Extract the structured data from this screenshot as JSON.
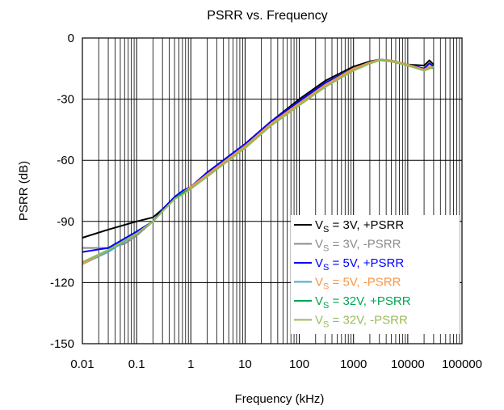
{
  "chart_data": {
    "type": "line",
    "title": "PSRR vs. Frequency",
    "xlabel": "Frequency (kHz)",
    "ylabel": "PSRR (dB)",
    "x_scale": "log",
    "xlim": [
      0.01,
      100000
    ],
    "ylim": [
      -150,
      0
    ],
    "x_ticks": [
      "0.01",
      "0.1",
      "1",
      "10",
      "100",
      "1000",
      "10000",
      "100000"
    ],
    "y_ticks": [
      "0",
      "-30",
      "-60",
      "-90",
      "-120",
      "-150"
    ],
    "grid": "on (major and minor, log x)",
    "legend_position": "bottom-right",
    "series": [
      {
        "name": "VS = 3V, +PSRR",
        "legend_main": "V",
        "legend_sub": "S",
        "legend_rest": " = 3V, +PSRR",
        "color": "#000000",
        "x": [
          0.01,
          0.03,
          0.1,
          0.2,
          0.3,
          0.5,
          0.7,
          1,
          2,
          5,
          10,
          30,
          100,
          300,
          1000,
          2000,
          3000,
          5000,
          10000,
          20000,
          25000,
          30000
        ],
        "y": [
          -98,
          -94,
          -90,
          -88,
          -84,
          -79,
          -76,
          -73,
          -66,
          -58,
          -52,
          -41,
          -30,
          -21,
          -14,
          -11.5,
          -10.5,
          -11,
          -13,
          -13.5,
          -11,
          -13
        ]
      },
      {
        "name": "VS = 3V, -PSRR",
        "legend_main": "V",
        "legend_sub": "S",
        "legend_rest": " = 3V, -PSRR",
        "color": "#8c8c8c",
        "x": [
          0.01,
          0.03,
          0.06,
          0.1,
          0.2,
          0.3,
          0.5,
          0.7,
          1,
          2,
          5,
          10,
          30,
          100,
          300,
          1000,
          2000,
          3000,
          5000,
          10000,
          20000,
          25000,
          30000
        ],
        "y": [
          -103,
          -103,
          -101,
          -97,
          -90,
          -85,
          -79,
          -76,
          -73,
          -66,
          -58,
          -52,
          -41,
          -31,
          -22,
          -15,
          -12,
          -10.5,
          -11,
          -13,
          -15,
          -12,
          -14
        ]
      },
      {
        "name": "VS = 5V, +PSRR",
        "legend_main": "V",
        "legend_sub": "S",
        "legend_rest": " = 5V, +PSRR",
        "color": "#0000ff",
        "x": [
          0.01,
          0.03,
          0.1,
          0.2,
          0.3,
          0.5,
          0.7,
          1,
          2,
          5,
          10,
          30,
          100,
          300,
          1000,
          2000,
          3000,
          5000,
          10000,
          20000,
          25000,
          30000
        ],
        "y": [
          -105,
          -103,
          -95,
          -90,
          -84,
          -78,
          -75,
          -73,
          -66,
          -58,
          -52,
          -41,
          -31,
          -22,
          -15,
          -12,
          -10.5,
          -11,
          -13,
          -15,
          -12.5,
          -14
        ]
      },
      {
        "name": "VS = 5V, -PSRR",
        "legend_main": "V",
        "legend_sub": "S",
        "legend_rest": " = 5V, -PSRR",
        "color": "#4bacc6",
        "x": [
          0.01,
          0.03,
          0.1,
          0.2,
          0.3,
          0.5,
          0.7,
          1,
          2,
          5,
          10,
          30,
          100,
          300,
          1000,
          2000,
          3000,
          5000,
          10000,
          20000,
          25000,
          30000
        ],
        "y": [
          -111,
          -105,
          -96,
          -90,
          -85,
          -79,
          -76,
          -73,
          -67,
          -59,
          -53,
          -42,
          -32,
          -23,
          -15,
          -12,
          -10.5,
          -11,
          -13,
          -15.5,
          -14,
          -15
        ]
      },
      {
        "name": "VS = 5V, -PSRR (orange)",
        "legend_main": "V",
        "legend_sub": "S",
        "legend_rest": " = 5V, -PSRR",
        "color": "#f79646",
        "x": [
          0.01,
          0.03,
          0.1,
          0.2,
          0.3,
          0.5,
          0.7,
          1,
          2,
          5,
          10,
          30,
          100,
          300,
          1000,
          2000,
          3000,
          5000,
          10000,
          20000,
          25000,
          30000
        ],
        "y": [
          -111,
          -104,
          -96,
          -90,
          -85,
          -79,
          -76,
          -73,
          -67,
          -59,
          -53,
          -42,
          -32,
          -23,
          -15,
          -12,
          -10.5,
          -11,
          -13,
          -15.5,
          -14,
          -15
        ]
      },
      {
        "name": "VS = 32V, +PSRR",
        "legend_main": "V",
        "legend_sub": "S",
        "legend_rest": " = 32V, +PSRR",
        "color": "#00a651",
        "x": [
          0.01,
          0.03,
          0.1,
          0.2,
          0.3,
          0.5,
          0.7,
          1,
          2,
          5,
          10,
          30,
          100,
          300,
          1000,
          2000,
          3000,
          5000,
          10000,
          20000,
          25000,
          30000
        ],
        "y": [
          -110,
          -104,
          -96,
          -90,
          -85,
          -79,
          -76,
          -74,
          -68,
          -60,
          -54,
          -43,
          -33,
          -24,
          -16,
          -12.5,
          -11,
          -11.5,
          -13.5,
          -16,
          -15,
          -14.5
        ]
      },
      {
        "name": "VS = 32V, -PSRR",
        "legend_main": "V",
        "legend_sub": "S",
        "legend_rest": " = 32V, -PSRR",
        "color": "#9bbb59",
        "x": [
          0.01,
          0.03,
          0.1,
          0.2,
          0.3,
          0.5,
          0.7,
          1,
          2,
          5,
          10,
          30,
          100,
          300,
          1000,
          2000,
          3000,
          5000,
          10000,
          20000,
          25000,
          30000
        ],
        "y": [
          -110,
          -104,
          -96,
          -90,
          -85,
          -79,
          -77,
          -74,
          -68,
          -60,
          -54,
          -43,
          -33,
          -24,
          -16,
          -12.5,
          -11,
          -11.5,
          -13.5,
          -16,
          -15,
          -14
        ]
      }
    ],
    "legend": [
      {
        "main": "V",
        "sub": "S",
        "rest": " = 3V, +PSRR",
        "color": "#000000"
      },
      {
        "main": "V",
        "sub": "S",
        "rest": " = 3V, -PSRR",
        "color": "#8c8c8c"
      },
      {
        "main": "V",
        "sub": "S",
        "rest": " = 5V, +PSRR",
        "color": "#0000ff"
      },
      {
        "main": "V",
        "sub": "S",
        "rest": " = 5V, -PSRR",
        "color": "#4bacc6",
        "text_color": "#f79646"
      },
      {
        "main": "V",
        "sub": "S",
        "rest": " = 32V, +PSRR",
        "color": "#00a651"
      },
      {
        "main": "V",
        "sub": "S",
        "rest": " = 32V, -PSRR",
        "color": "#9bbb59"
      }
    ]
  }
}
